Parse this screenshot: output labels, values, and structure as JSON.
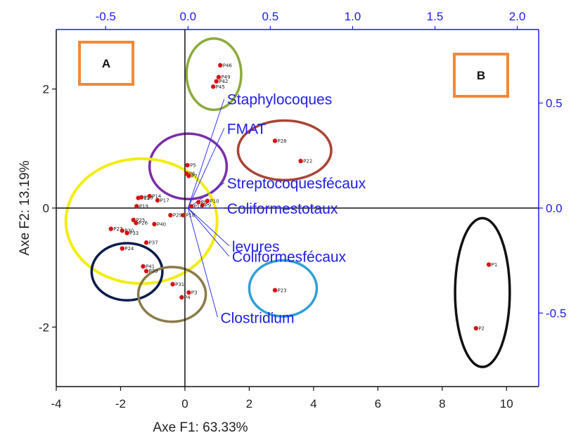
{
  "chart_data": {
    "type": "scatter",
    "xlabel": "Axe F1: 63.33%",
    "ylabel": "Axe F2: 13.19%",
    "xlim": [
      -4,
      11
    ],
    "ylim": [
      -3,
      3
    ],
    "x_ticks": [
      "-4",
      "-2",
      "0",
      "2",
      "4",
      "6",
      "8",
      "10"
    ],
    "y_ticks": [
      "-2",
      "0",
      "2"
    ],
    "top_axis": {
      "lim": [
        -0.8,
        2.13
      ],
      "ticks": [
        "-0.5",
        "0.0",
        "0.5",
        "1.0",
        "1.5",
        "2.0"
      ],
      "color": "#1b1bf0"
    },
    "right_axis": {
      "lim": [
        -0.85,
        0.85
      ],
      "ticks": [
        "0.5",
        "0.0",
        "-0.5"
      ],
      "color": "#1b1bf0"
    },
    "box_labels": [
      "A",
      "B"
    ],
    "observations": [
      {
        "label": "P1",
        "x": 9.45,
        "y": -0.95
      },
      {
        "label": "P2",
        "x": 9.05,
        "y": -2.02
      },
      {
        "label": "P23",
        "x": 2.8,
        "y": -1.38
      },
      {
        "label": "P28",
        "x": 2.8,
        "y": 1.13
      },
      {
        "label": "P22",
        "x": 3.6,
        "y": 0.79
      },
      {
        "label": "P46",
        "x": 1.1,
        "y": 2.4
      },
      {
        "label": "P49",
        "x": 1.05,
        "y": 2.2
      },
      {
        "label": "P42",
        "x": 0.98,
        "y": 2.13
      },
      {
        "label": "P45",
        "x": 0.88,
        "y": 2.04
      },
      {
        "label": "P5",
        "x": 0.08,
        "y": 0.72
      },
      {
        "label": "P6",
        "x": 0.05,
        "y": 0.58
      },
      {
        "label": "P7",
        "x": 0.12,
        "y": 0.54
      },
      {
        "label": "P8",
        "x": 0.42,
        "y": 0.1
      },
      {
        "label": "P9",
        "x": 0.55,
        "y": 0.05
      },
      {
        "label": "P10",
        "x": 0.7,
        "y": 0.12
      },
      {
        "label": "P16",
        "x": 0.2,
        "y": 0.03
      },
      {
        "label": "P18",
        "x": -0.05,
        "y": -0.12
      },
      {
        "label": "P12",
        "x": -1.45,
        "y": 0.17
      },
      {
        "label": "P13",
        "x": -1.35,
        "y": 0.18
      },
      {
        "label": "P14",
        "x": -1.1,
        "y": 0.2
      },
      {
        "label": "P17",
        "x": -0.85,
        "y": 0.13
      },
      {
        "label": "P19",
        "x": -1.5,
        "y": 0.03
      },
      {
        "label": "P25",
        "x": -1.6,
        "y": -0.2
      },
      {
        "label": "P26",
        "x": -1.52,
        "y": -0.25
      },
      {
        "label": "P27",
        "x": -2.3,
        "y": -0.35
      },
      {
        "label": "P30",
        "x": -1.95,
        "y": -0.38
      },
      {
        "label": "P33",
        "x": -1.8,
        "y": -0.42
      },
      {
        "label": "P29",
        "x": -0.45,
        "y": -0.12
      },
      {
        "label": "P37",
        "x": -1.2,
        "y": -0.58
      },
      {
        "label": "P24",
        "x": -1.95,
        "y": -0.68
      },
      {
        "label": "P40",
        "x": -0.95,
        "y": -0.27
      },
      {
        "label": "P41",
        "x": -1.3,
        "y": -0.98
      },
      {
        "label": "P39",
        "x": -1.2,
        "y": -1.06
      },
      {
        "label": "P31",
        "x": -0.38,
        "y": -1.28
      },
      {
        "label": "P3",
        "x": 0.12,
        "y": -1.42
      },
      {
        "label": "P4",
        "x": -0.1,
        "y": -1.5
      }
    ],
    "variables": [
      {
        "name": "Staphylocoques",
        "x": 0.22,
        "y": 0.52
      },
      {
        "name": "FMAT",
        "x": 0.22,
        "y": 0.38
      },
      {
        "name": "Streptocoquesfécaux",
        "x": 0.22,
        "y": 0.12
      },
      {
        "name": "Coliformestotaux",
        "x": 0.22,
        "y": 0.0
      },
      {
        "name": "levures",
        "x": 0.25,
        "y": -0.18
      },
      {
        "name": "Coliformesfécaux",
        "x": 0.25,
        "y": -0.23
      },
      {
        "name": "Clostridium",
        "x": 0.18,
        "y": -0.52
      }
    ],
    "group_ellipses": [
      {
        "color": "#8aaa3c",
        "cx": 0.9,
        "cy": 2.25,
        "rx": 0.85,
        "ry": 0.6
      },
      {
        "color": "#7b2fa6",
        "cx": 0.1,
        "cy": 0.7,
        "rx": 1.2,
        "ry": 0.55
      },
      {
        "color": "#a84434",
        "cx": 3.1,
        "cy": 0.97,
        "rx": 1.45,
        "ry": 0.5
      },
      {
        "color": "#f2ed10",
        "cx": -1.35,
        "cy": -0.22,
        "rx": 2.35,
        "ry": 1.05
      },
      {
        "color": "#0a1c4d",
        "cx": -1.8,
        "cy": -1.07,
        "rx": 1.1,
        "ry": 0.48
      },
      {
        "color": "#8a7a4a",
        "cx": -0.4,
        "cy": -1.45,
        "rx": 1.05,
        "ry": 0.46
      },
      {
        "color": "#2ea0d6",
        "cx": 3.05,
        "cy": -1.35,
        "rx": 1.05,
        "ry": 0.47
      },
      {
        "color": "#111111",
        "cx": 9.25,
        "cy": -1.42,
        "rx": 0.85,
        "ry": 1.25
      }
    ],
    "colors": {
      "points": "#d41515",
      "vectors": "#3535f0",
      "left_bottom_axis": "#111111",
      "box_border": "#f08a3c"
    }
  }
}
